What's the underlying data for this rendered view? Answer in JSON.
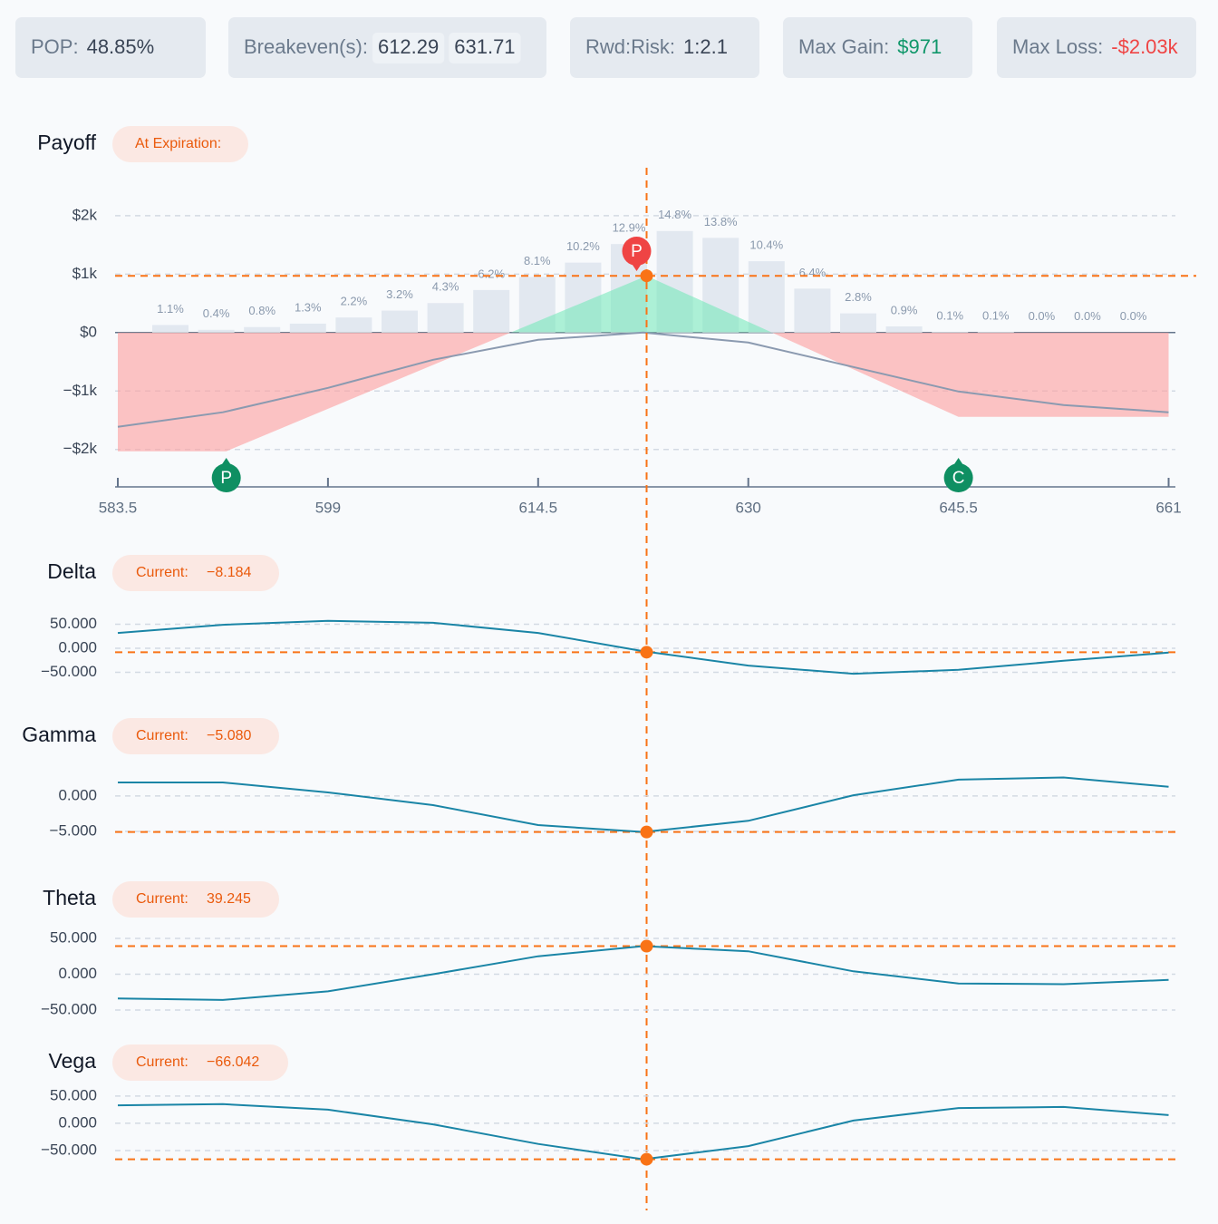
{
  "stats": [
    {
      "label": "POP:",
      "value": "48.85%"
    },
    {
      "label": "Breakeven(s):",
      "values": [
        "612.29",
        "631.71"
      ]
    },
    {
      "label": "Rwd:Risk:",
      "value": "1:2.1"
    },
    {
      "label": "Max Gain:",
      "value": "$971"
    },
    {
      "label": "Max Loss:",
      "value": "-$2.03k"
    }
  ],
  "chart_data": [
    {
      "type": "payoff",
      "title": "Payoff",
      "badge": "At Expiration:",
      "xlim": [
        583.3,
        661.5
      ],
      "xticks": [
        583.5,
        599,
        614.5,
        630,
        645.5,
        661
      ],
      "ylim": [
        -2640,
        2820
      ],
      "yticks": [
        {
          "value": 2000,
          "label": "$2k"
        },
        {
          "value": 1000,
          "label": "$1k"
        },
        {
          "value": 0,
          "label": "$0"
        },
        {
          "value": -1000,
          "label": "−$1k"
        },
        {
          "value": -2000,
          "label": "−$2k"
        }
      ],
      "expiration": {
        "x": [
          583.5,
          591.5,
          622.5,
          645.5,
          661
        ],
        "values": [
          -2030,
          -2030,
          971,
          -1442,
          -1442
        ]
      },
      "current_curve": {
        "x": [
          583.5,
          591.25,
          599,
          606.75,
          614.5,
          622.25,
          630,
          637.75,
          645.5,
          653.25,
          661
        ],
        "values": [
          -1612,
          -1364,
          -946,
          -465,
          -124,
          0,
          -170,
          -589,
          -1008,
          -1240,
          -1364
        ]
      },
      "probability": {
        "values": [
          1.1,
          0.4,
          0.8,
          1.3,
          2.2,
          3.2,
          4.3,
          6.2,
          8.1,
          10.2,
          12.9,
          14.8,
          13.8,
          10.4,
          6.4,
          2.8,
          0.9,
          0.1,
          0.1,
          0.0,
          0.0,
          0.0
        ],
        "value_labels": [
          "1.1%",
          "0.4%",
          "0.8%",
          "1.3%",
          "2.2%",
          "3.2%",
          "4.3%",
          "6.2%",
          "8.1%",
          "10.2%",
          "12.9%",
          "14.8%",
          "13.8%",
          "10.4%",
          "6.4%",
          "2.8%",
          "0.9%",
          "0.1%",
          "0.1%",
          "0.0%",
          "0.0%",
          "0.0%"
        ]
      },
      "legs": [
        {
          "label": "P",
          "strike": 591.5,
          "side": "long"
        },
        {
          "label": "P",
          "strike": 622.5,
          "side": "short"
        },
        {
          "label": "C",
          "strike": 645.5,
          "side": "long"
        }
      ],
      "price": 622.5,
      "max_gain": 971
    },
    {
      "type": "line",
      "title": "Delta",
      "badge": "Current:",
      "current": -8.184,
      "current_label": "−8.184",
      "ylim": [
        -85,
        85
      ],
      "yticks": [
        {
          "value": 50,
          "label": "50.000"
        },
        {
          "value": 0,
          "label": "0.000"
        },
        {
          "value": -50,
          "label": "−50.000"
        }
      ],
      "x": [
        583.5,
        591.25,
        599,
        606.75,
        614.5,
        622.25,
        630,
        637.75,
        645.5,
        653.25,
        661
      ],
      "values": [
        32,
        49,
        57,
        53,
        32,
        -6,
        -36,
        -53,
        -45,
        -26,
        -9
      ]
    },
    {
      "type": "line",
      "title": "Gamma",
      "badge": "Current:",
      "current": -5.08,
      "current_label": "−5.080",
      "ylim": [
        -7.3,
        4.2
      ],
      "yticks": [
        {
          "value": 0,
          "label": "0.000"
        },
        {
          "value": -5,
          "label": "−5.000"
        }
      ],
      "x": [
        583.5,
        591.25,
        599,
        606.75,
        614.5,
        622.25,
        630,
        637.75,
        645.5,
        653.25,
        661
      ],
      "values": [
        1.9,
        1.9,
        0.5,
        -1.3,
        -4.1,
        -5.08,
        -3.5,
        0.1,
        2.3,
        2.6,
        1.3
      ]
    },
    {
      "type": "line",
      "title": "Theta",
      "badge": "Current:",
      "current": 39.245,
      "current_label": "39.245",
      "ylim": [
        -64,
        69
      ],
      "yticks": [
        {
          "value": 50,
          "label": "50.000"
        },
        {
          "value": 0,
          "label": "0.000"
        },
        {
          "value": -50,
          "label": "−50.000"
        }
      ],
      "x": [
        583.5,
        591.25,
        599,
        606.75,
        614.5,
        622.25,
        630,
        637.75,
        645.5,
        653.25,
        661
      ],
      "values": [
        -34,
        -36,
        -24,
        0,
        25,
        39.2,
        32,
        4,
        -13,
        -14,
        -8
      ]
    },
    {
      "type": "line",
      "title": "Vega",
      "badge": "Current:",
      "current": -66.042,
      "current_label": "−66.042",
      "ylim": [
        -85,
        73
      ],
      "yticks": [
        {
          "value": 50,
          "label": "50.000"
        },
        {
          "value": 0,
          "label": "0.000"
        },
        {
          "value": -50,
          "label": "−50.000"
        }
      ],
      "x": [
        583.5,
        591.25,
        599,
        606.75,
        614.5,
        622.25,
        630,
        637.75,
        645.5,
        653.25,
        661
      ],
      "values": [
        33,
        35,
        25,
        -2,
        -38,
        -66,
        -42,
        5,
        28,
        30,
        15
      ]
    }
  ]
}
